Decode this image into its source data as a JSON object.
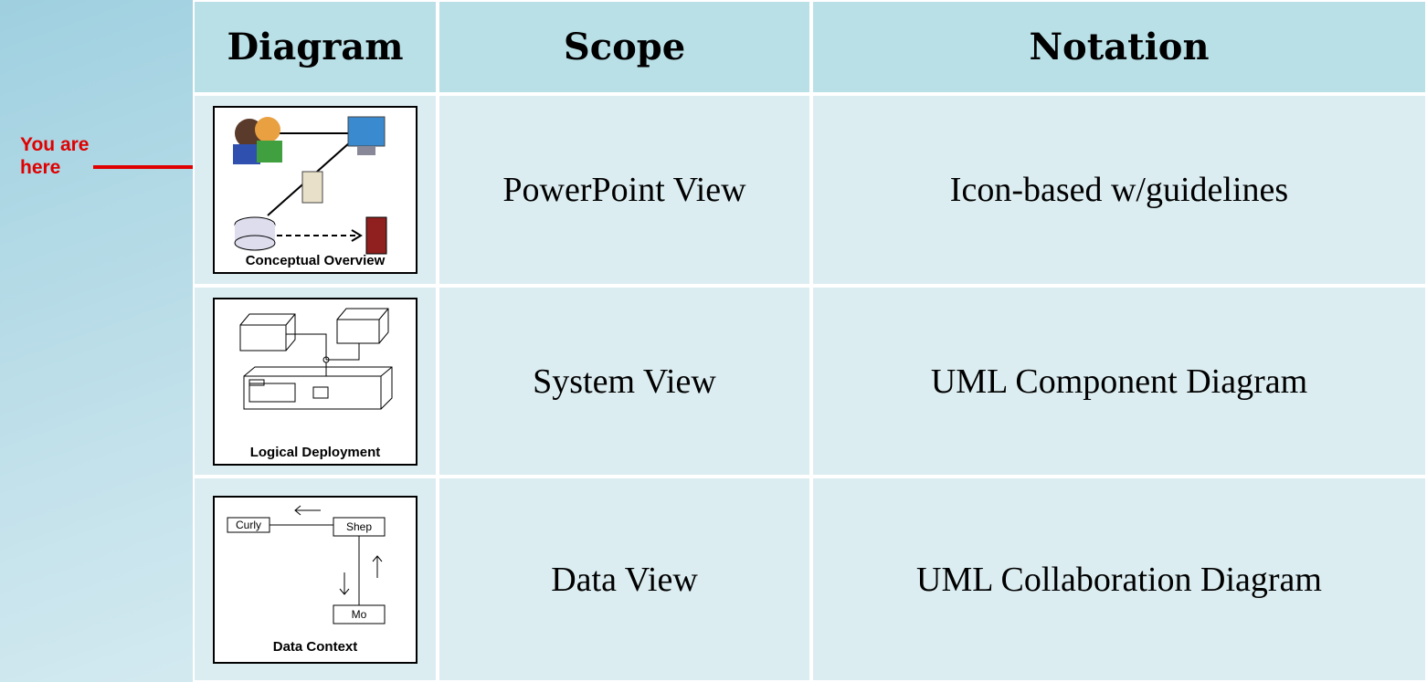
{
  "annotation": {
    "lines": [
      "You are",
      "here"
    ]
  },
  "table": {
    "header": [
      "Diagram",
      "Scope",
      "Notation"
    ],
    "rows": [
      {
        "thumbnail": {
          "caption": "Conceptual Overview"
        },
        "scope": "PowerPoint View",
        "notation": "Icon-based w/guidelines"
      },
      {
        "thumbnail": {
          "caption": "Logical Deployment"
        },
        "scope": "System View",
        "notation": "UML Component Diagram"
      },
      {
        "thumbnail": {
          "caption": "Data Context",
          "nodes": [
            "Curly",
            "Shep",
            "Mo"
          ]
        },
        "scope": "Data View",
        "notation": "UML Collaboration Diagram"
      }
    ]
  }
}
